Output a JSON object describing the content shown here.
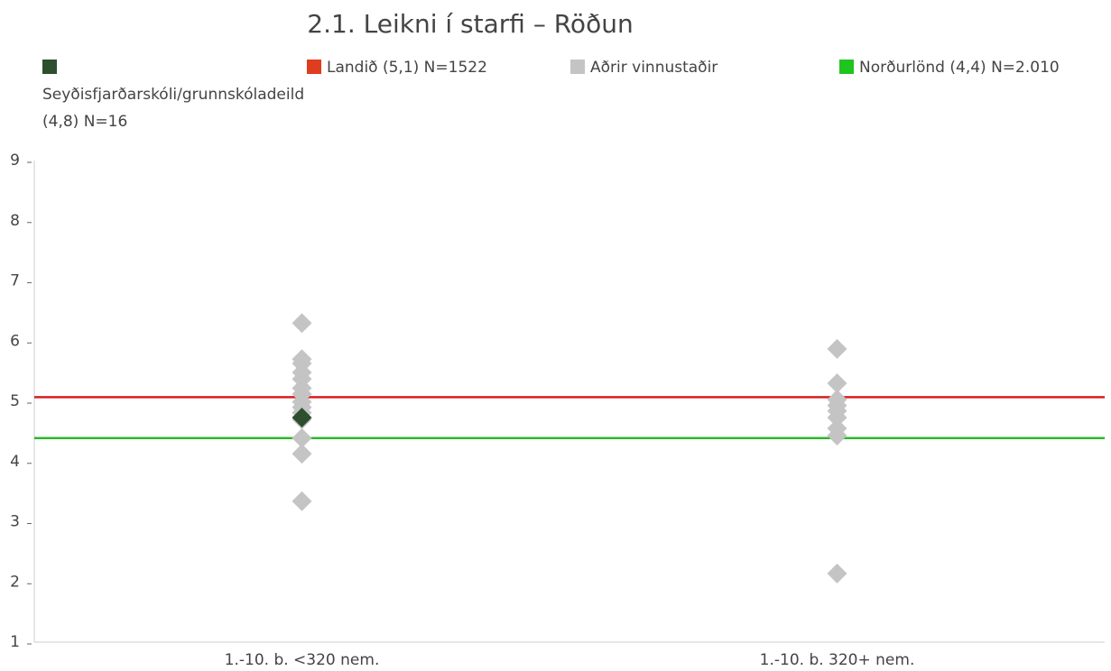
{
  "chart_data": {
    "type": "scatter",
    "title": "2.1. Leikni í starfi – Röðun",
    "categories": [
      "1.-10. b. <320 nem.",
      "1.-10. b. 320+ nem."
    ],
    "ylim": [
      1,
      9
    ],
    "yticks": [
      1,
      2,
      3,
      4,
      5,
      6,
      7,
      8,
      9
    ],
    "series": [
      {
        "name": "Seyðisfjarðarskóli/grunnskóladeild (4,8) N=16",
        "kind": "points",
        "color": "#2d4f2d",
        "values": [
          [
            4.73
          ],
          []
        ]
      },
      {
        "name": "Landið (5,1) N=1522",
        "kind": "line",
        "color": "#e03c1f",
        "line_color": "#d61f1f",
        "value": 5.07
      },
      {
        "name": "Aðrir vinnustaðir",
        "kind": "points",
        "color": "#c4c4c4",
        "values": [
          [
            6.3,
            5.7,
            5.63,
            5.48,
            5.37,
            5.22,
            5.12,
            4.99,
            4.9,
            4.81,
            4.7,
            4.39,
            4.13,
            3.34
          ],
          [
            5.87,
            5.3,
            5.03,
            4.93,
            4.84,
            4.73,
            4.55,
            4.43,
            2.14
          ]
        ]
      },
      {
        "name": "Norðurlönd (4,4) N=2.010",
        "kind": "line",
        "color": "#1fc41f",
        "line_color": "#2db82d",
        "value": 4.39
      }
    ]
  }
}
